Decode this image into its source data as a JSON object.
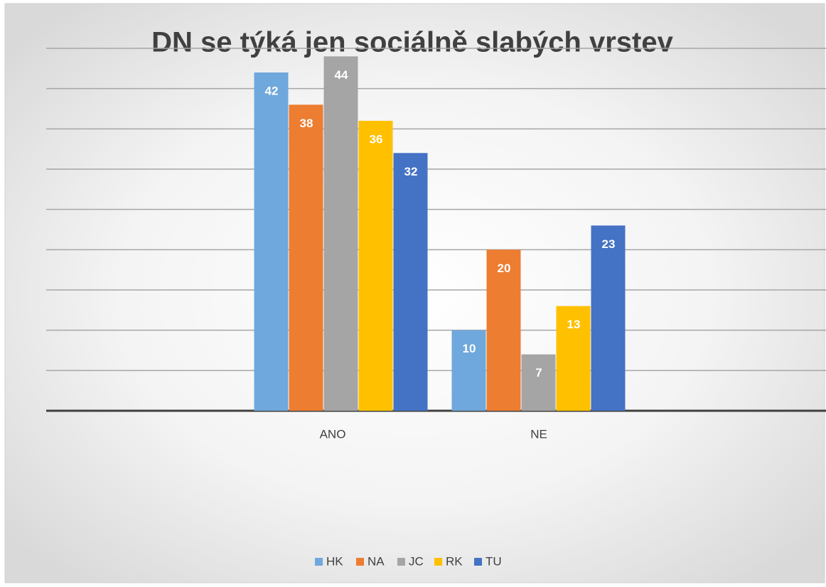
{
  "chart_data": {
    "type": "bar",
    "title": "DN se týká jen sociálně slabých vrstev",
    "categories": [
      "ANO",
      "NE"
    ],
    "series": [
      {
        "name": "HK",
        "color": "#6fa8dc",
        "values": [
          42,
          10
        ]
      },
      {
        "name": "NA",
        "color": "#ed7d31",
        "values": [
          38,
          20
        ]
      },
      {
        "name": "JC",
        "color": "#a5a5a5",
        "values": [
          44,
          7
        ]
      },
      {
        "name": "RK",
        "color": "#ffc000",
        "values": [
          36,
          13
        ]
      },
      {
        "name": "TU",
        "color": "#4472c4",
        "values": [
          32,
          23
        ]
      }
    ],
    "ylim": [
      0,
      45
    ],
    "yticks": [
      0,
      5,
      10,
      15,
      20,
      25,
      30,
      35,
      40,
      45
    ],
    "grid": true,
    "legend": "bottom"
  }
}
